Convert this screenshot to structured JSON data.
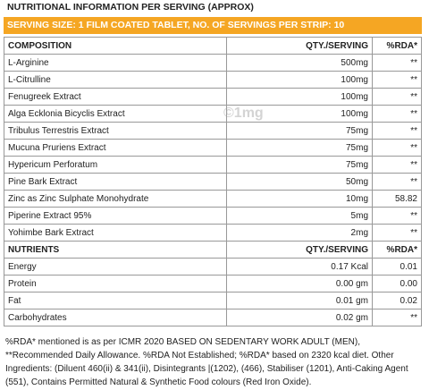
{
  "title": "NUTRITIONAL INFORMATION PER SERVING (APPROX)",
  "serving": "SERVING SIZE: 1 FILM COATED TABLET, NO. OF SERVINGS PER STRIP: 10",
  "watermark": "©1mg",
  "sections": [
    {
      "header": [
        "COMPOSITION",
        "QTY./SERVING",
        "%RDA*"
      ],
      "rows": [
        [
          "L-Arginine",
          "500mg",
          "**"
        ],
        [
          "L-Citrulline",
          "100mg",
          "**"
        ],
        [
          "Fenugreek Extract",
          "100mg",
          "**"
        ],
        [
          "Alga Ecklonia Bicyclis Extract",
          "100mg",
          "**"
        ],
        [
          "Tribulus Terrestris Extract",
          "75mg",
          "**"
        ],
        [
          "Mucuna Pruriens Extract",
          "75mg",
          "**"
        ],
        [
          "Hypericum Perforatum",
          "75mg",
          "**"
        ],
        [
          "Pine Bark Extract",
          "50mg",
          "**"
        ],
        [
          "Zinc as Zinc Sulphate Monohydrate",
          "10mg",
          "58.82"
        ],
        [
          "Piperine Extract 95%",
          "5mg",
          "**"
        ],
        [
          "Yohimbe Bark Extract",
          "2mg",
          "**"
        ]
      ]
    },
    {
      "header": [
        "NUTRIENTS",
        "QTY./SERVING",
        "%RDA*"
      ],
      "rows": [
        [
          "Energy",
          "0.17 Kcal",
          "0.01"
        ],
        [
          "Protein",
          "0.00 gm",
          "0.00"
        ],
        [
          "Fat",
          "0.01 gm",
          "0.02"
        ],
        [
          "Carbohydrates",
          "0.02 gm",
          "**"
        ]
      ]
    }
  ],
  "footnote": "%RDA* mentioned is as per ICMR 2020 BASED ON SEDENTARY WORK ADULT (MEN), **Recommended Daily Allowance. %RDA Not Established; %RDA* based on 2320 kcal diet. Other Ingredients: (Diluent 460(ii) & 341(ii), Disintegrants |(1202), (466), Stabiliser (1201), Anti-Caking Agent (551), Contains Permitted Natural & Synthetic Food colours (Red Iron Oxide)."
}
